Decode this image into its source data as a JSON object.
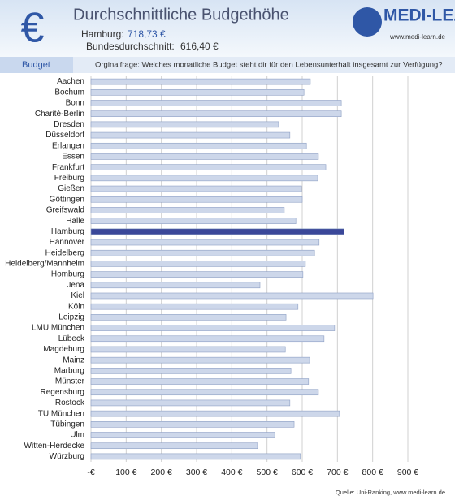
{
  "chart_data": {
    "type": "bar",
    "orientation": "horizontal",
    "title": "Durchschnittliche Budgethöhe",
    "annotations": [
      {
        "label": "Hamburg:",
        "text": "718,73 €"
      },
      {
        "label": "Bundesdurchschnitt:",
        "text": "616,40 €"
      }
    ],
    "symbol": "€",
    "logo": "MEDI-LEARN",
    "logo_url": "www.medi-learn.de",
    "section_label": "Budget",
    "question": "Orginalfrage: Welches monatliche Budget steht dir für den Lebensunterhalt insgesamt zur Verfügung?",
    "source": "Quelle: Uni-Ranking, www.medi-learn.de",
    "categories": [
      "Aachen",
      "Bochum",
      "Bonn",
      "Charité-Berlin",
      "Dresden",
      "Düsseldorf",
      "Erlangen",
      "Essen",
      "Frankfurt",
      "Freiburg",
      "Gießen",
      "Göttingen",
      "Greifswald",
      "Halle",
      "Hamburg",
      "Hannover",
      "Heidelberg",
      "Heidelberg/Mannheim",
      "Homburg",
      "Jena",
      "Kiel",
      "Köln",
      "Leipzig",
      "LMU München",
      "Lübeck",
      "Magdeburg",
      "Mainz",
      "Marburg",
      "Münster",
      "Regensburg",
      "Rostock",
      "TU München",
      "Tübingen",
      "Ulm",
      "Witten-Herdecke",
      "Würzburg"
    ],
    "values": [
      623,
      605,
      711,
      711,
      533,
      565,
      612,
      646,
      667,
      644,
      598,
      600,
      549,
      582,
      718.73,
      648,
      635,
      609,
      602,
      480,
      801,
      588,
      554,
      692,
      662,
      552,
      621,
      568,
      618,
      646,
      565,
      706,
      577,
      522,
      473,
      595
    ],
    "colors": [
      "#cdd7ea",
      "#cdd7ea",
      "#cdd7ea",
      "#cdd7ea",
      "#cdd7ea",
      "#cdd7ea",
      "#cdd7ea",
      "#cdd7ea",
      "#cdd7ea",
      "#cdd7ea",
      "#cdd7ea",
      "#cdd7ea",
      "#cdd7ea",
      "#cdd7ea",
      "#3a4799",
      "#cdd7ea",
      "#cdd7ea",
      "#cdd7ea",
      "#cdd7ea",
      "#cdd7ea",
      "#cdd7ea",
      "#cdd7ea",
      "#cdd7ea",
      "#cdd7ea",
      "#cdd7ea",
      "#cdd7ea",
      "#cdd7ea",
      "#cdd7ea",
      "#cdd7ea",
      "#cdd7ea",
      "#cdd7ea",
      "#cdd7ea",
      "#cdd7ea",
      "#cdd7ea",
      "#cdd7ea",
      "#cdd7ea"
    ],
    "xlim": [
      0,
      900
    ],
    "xticks": [
      {
        "value": 0,
        "label": "-€"
      },
      {
        "value": 100,
        "label": "100 €"
      },
      {
        "value": 200,
        "label": "200 €"
      },
      {
        "value": 300,
        "label": "300 €"
      },
      {
        "value": 400,
        "label": "400 €"
      },
      {
        "value": 500,
        "label": "500 €"
      },
      {
        "value": 600,
        "label": "600 €"
      },
      {
        "value": 700,
        "label": "700 €"
      },
      {
        "value": 800,
        "label": "800 €"
      },
      {
        "value": 900,
        "label": "900 €"
      }
    ],
    "grid": true
  }
}
